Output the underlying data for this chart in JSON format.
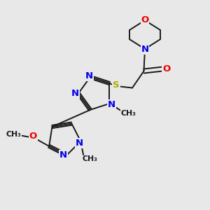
{
  "bg_color": "#e8e8e8",
  "atom_colors": {
    "C": "#1a1a1a",
    "N": "#0000ee",
    "O": "#ee0000",
    "S": "#aaaa00",
    "H": "#1a1a1a"
  },
  "bond_color": "#1a1a1a",
  "figsize": [
    3.0,
    3.0
  ],
  "dpi": 100,
  "xlim": [
    0,
    10
  ],
  "ylim": [
    0,
    10
  ]
}
